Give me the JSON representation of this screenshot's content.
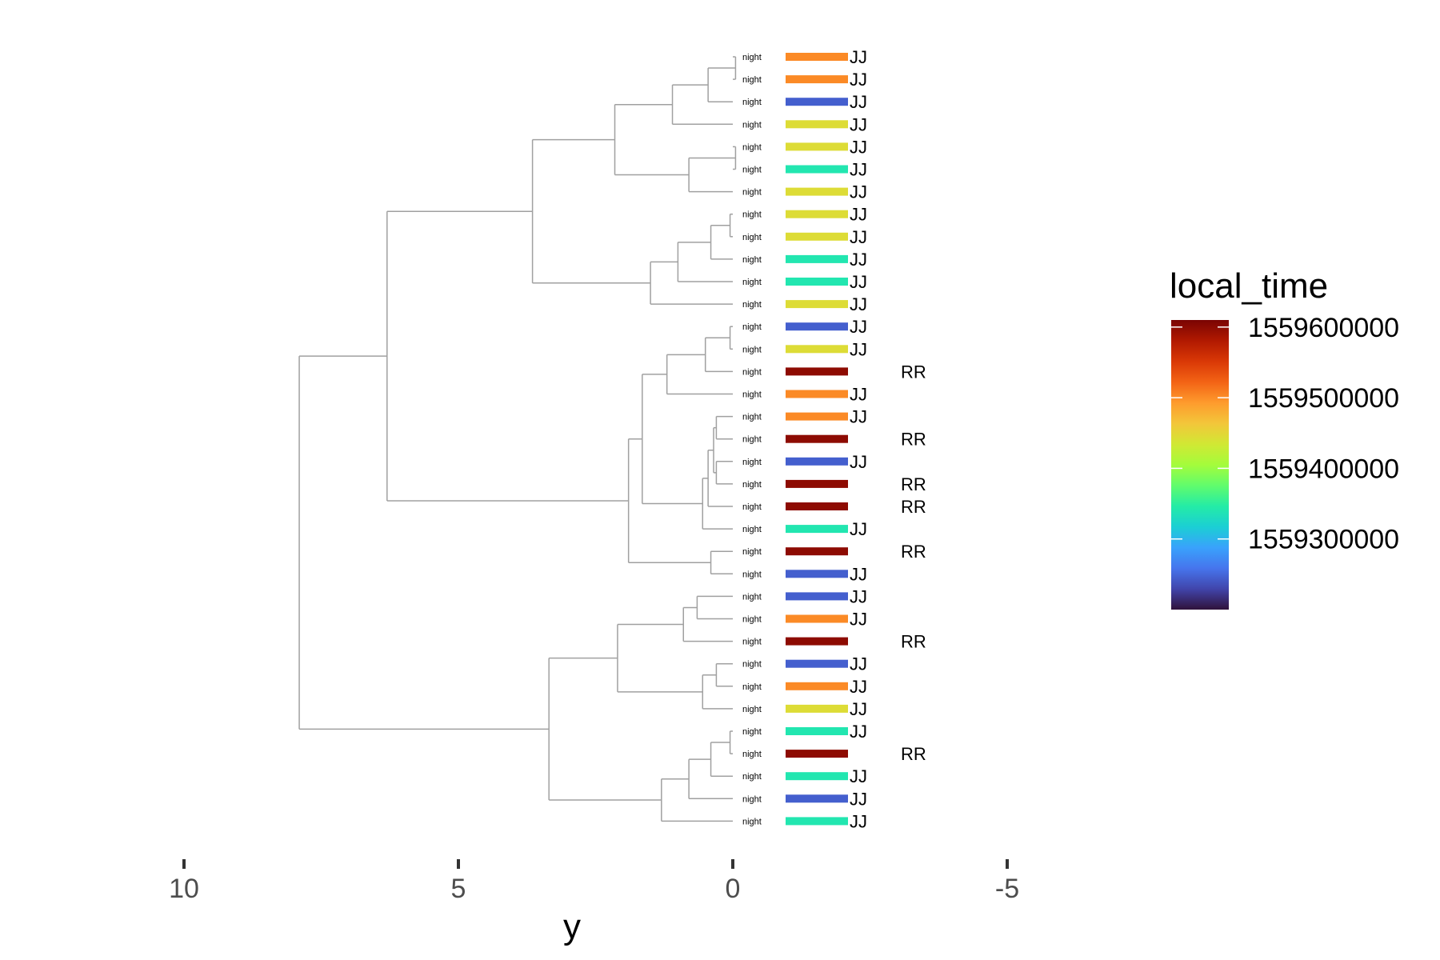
{
  "chart_data": {
    "type": "dendrogram",
    "xlabel": "y",
    "xlim": [
      10,
      -5
    ],
    "x_ticks": [
      10,
      5,
      0,
      -5
    ],
    "x_tick_labels": [
      "10",
      "5",
      "0",
      "-5"
    ],
    "grid": false,
    "leaves": [
      {
        "label": "night",
        "group": "JJ",
        "local_time": 1559502000
      },
      {
        "label": "night",
        "group": "JJ",
        "local_time": 1559502000
      },
      {
        "label": "night",
        "group": "JJ",
        "local_time": 1559245000
      },
      {
        "label": "night",
        "group": "JJ",
        "local_time": 1559445000
      },
      {
        "label": "night",
        "group": "JJ",
        "local_time": 1559445000
      },
      {
        "label": "night",
        "group": "JJ",
        "local_time": 1559340000
      },
      {
        "label": "night",
        "group": "JJ",
        "local_time": 1559445000
      },
      {
        "label": "night",
        "group": "JJ",
        "local_time": 1559445000
      },
      {
        "label": "night",
        "group": "JJ",
        "local_time": 1559445000
      },
      {
        "label": "night",
        "group": "JJ",
        "local_time": 1559340000
      },
      {
        "label": "night",
        "group": "JJ",
        "local_time": 1559340000
      },
      {
        "label": "night",
        "group": "JJ",
        "local_time": 1559445000
      },
      {
        "label": "night",
        "group": "JJ",
        "local_time": 1559245000
      },
      {
        "label": "night",
        "group": "JJ",
        "local_time": 1559445000
      },
      {
        "label": "night",
        "group": "RR",
        "local_time": 1559600000
      },
      {
        "label": "night",
        "group": "JJ",
        "local_time": 1559502000
      },
      {
        "label": "night",
        "group": "JJ",
        "local_time": 1559502000
      },
      {
        "label": "night",
        "group": "RR",
        "local_time": 1559600000
      },
      {
        "label": "night",
        "group": "JJ",
        "local_time": 1559245000
      },
      {
        "label": "night",
        "group": "RR",
        "local_time": 1559600000
      },
      {
        "label": "night",
        "group": "RR",
        "local_time": 1559600000
      },
      {
        "label": "night",
        "group": "JJ",
        "local_time": 1559340000
      },
      {
        "label": "night",
        "group": "RR",
        "local_time": 1559600000
      },
      {
        "label": "night",
        "group": "JJ",
        "local_time": 1559245000
      },
      {
        "label": "night",
        "group": "JJ",
        "local_time": 1559245000
      },
      {
        "label": "night",
        "group": "JJ",
        "local_time": 1559502000
      },
      {
        "label": "night",
        "group": "RR",
        "local_time": 1559600000
      },
      {
        "label": "night",
        "group": "JJ",
        "local_time": 1559245000
      },
      {
        "label": "night",
        "group": "JJ",
        "local_time": 1559502000
      },
      {
        "label": "night",
        "group": "JJ",
        "local_time": 1559445000
      },
      {
        "label": "night",
        "group": "JJ",
        "local_time": 1559340000
      },
      {
        "label": "night",
        "group": "RR",
        "local_time": 1559600000
      },
      {
        "label": "night",
        "group": "JJ",
        "local_time": 1559340000
      },
      {
        "label": "night",
        "group": "JJ",
        "local_time": 1559245000
      },
      {
        "label": "night",
        "group": "JJ",
        "local_time": 1559340000
      }
    ],
    "merges": [
      {
        "children": [
          "L0",
          "L1"
        ],
        "height": -0.05
      },
      {
        "children": [
          "M0",
          "L2"
        ],
        "height": 0.45
      },
      {
        "children": [
          "M1",
          "L3"
        ],
        "height": 1.1
      },
      {
        "children": [
          "L4",
          "L5"
        ],
        "height": -0.05
      },
      {
        "children": [
          "M3",
          "L6"
        ],
        "height": 0.8
      },
      {
        "children": [
          "M2",
          "M4"
        ],
        "height": 2.15
      },
      {
        "children": [
          "L7",
          "L8"
        ],
        "height": 0.05
      },
      {
        "children": [
          "M6",
          "L9"
        ],
        "height": 0.4
      },
      {
        "children": [
          "M7",
          "L10"
        ],
        "height": 1.0
      },
      {
        "children": [
          "M8",
          "L11"
        ],
        "height": 1.5
      },
      {
        "children": [
          "M5",
          "M9"
        ],
        "height": 3.65
      },
      {
        "children": [
          "L12",
          "L13"
        ],
        "height": 0.05
      },
      {
        "children": [
          "M11",
          "L14"
        ],
        "height": 0.5
      },
      {
        "children": [
          "M12",
          "L15"
        ],
        "height": 1.2
      },
      {
        "children": [
          "L18",
          "L19"
        ],
        "height": 0.3
      },
      {
        "children": [
          "L16",
          "L17"
        ],
        "height": 0.3
      },
      {
        "children": [
          "M15",
          "M14"
        ],
        "height": 0.35
      },
      {
        "children": [
          "M16",
          "L20"
        ],
        "height": 0.45
      },
      {
        "children": [
          "M17",
          "L21"
        ],
        "height": 0.55
      },
      {
        "children": [
          "M13",
          "M18"
        ],
        "height": 1.65
      },
      {
        "children": [
          "L22",
          "L23"
        ],
        "height": 0.4
      },
      {
        "children": [
          "M19",
          "M20"
        ],
        "height": 1.9
      },
      {
        "children": [
          "M10",
          "M21"
        ],
        "height": 6.3
      },
      {
        "children": [
          "L24",
          "L25"
        ],
        "height": 0.65
      },
      {
        "children": [
          "M23",
          "L26"
        ],
        "height": 0.9
      },
      {
        "children": [
          "L27",
          "L28"
        ],
        "height": 0.3
      },
      {
        "children": [
          "M25",
          "L29"
        ],
        "height": 0.55
      },
      {
        "children": [
          "M24",
          "M26"
        ],
        "height": 2.1
      },
      {
        "children": [
          "L30",
          "L31"
        ],
        "height": 0.05
      },
      {
        "children": [
          "M28",
          "L32"
        ],
        "height": 0.4
      },
      {
        "children": [
          "M29",
          "L33"
        ],
        "height": 0.8
      },
      {
        "children": [
          "M30",
          "L34"
        ],
        "height": 1.3
      },
      {
        "children": [
          "M27",
          "M31"
        ],
        "height": 3.35
      },
      {
        "children": [
          "M22",
          "M32"
        ],
        "height": 7.9
      }
    ],
    "legend": {
      "title": "local_time",
      "position": "right",
      "type": "colorbar",
      "range": [
        1559200000,
        1559610000
      ],
      "breaks": [
        1559600000,
        1559500000,
        1559400000,
        1559300000
      ],
      "break_labels": [
        "1559600000",
        "1559500000",
        "1559400000",
        "1559300000"
      ],
      "palette": [
        "#30123b",
        "#4145ab",
        "#4675ed",
        "#39a2fc",
        "#1bcfd4",
        "#24eca6",
        "#61fc6c",
        "#a4fc3b",
        "#d1e834",
        "#f3c63a",
        "#fe9b2d",
        "#f36315",
        "#d93806",
        "#b11901",
        "#7a0402"
      ]
    },
    "colors": {
      "branch": "#a0a0a0",
      "tick": "#333333",
      "text": "#000000",
      "tick_label": "#4d4d4d"
    }
  }
}
